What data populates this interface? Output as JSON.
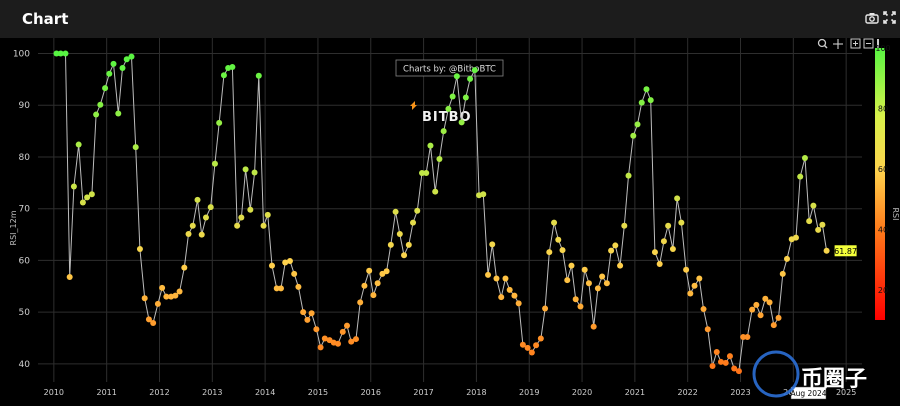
{
  "header": {
    "title": "Chart"
  },
  "icons": {
    "camera": "camera-icon",
    "fullscreen": "fullscreen-icon",
    "zoom": "zoom-icon",
    "pan": "pan-icon",
    "zoom_in": "zoom-in-icon",
    "zoom_out": "zoom-out-icon",
    "autoscale": "autoscale-icon"
  },
  "watermark": {
    "credit": "Charts by: @BitboBTC",
    "logo": "BITBO"
  },
  "corner_logo": "币圈子",
  "chart_data": {
    "type": "scatter",
    "mode": "lines+markers",
    "ylabel": "RSI_12m",
    "xlabel": "",
    "x_ticks": [
      "2010",
      "2011",
      "2012",
      "2013",
      "2014",
      "2015",
      "2016",
      "2017",
      "2018",
      "2019",
      "2020",
      "2021",
      "2022",
      "2023",
      "2024",
      "2025"
    ],
    "y_ticks": [
      40,
      50,
      60,
      70,
      80,
      90,
      100
    ],
    "xlim": [
      2009.7,
      2025.3
    ],
    "ylim": [
      36.5,
      103
    ],
    "grid": true,
    "colorbar": {
      "title": "RSI",
      "ticks": [
        20,
        40,
        60,
        80,
        100
      ],
      "range": [
        10,
        100
      ]
    },
    "last_value_label": "61.87",
    "hover_x_label": "Aug 2024",
    "series": [
      {
        "points": [
          [
            2010.05,
            100
          ],
          [
            2010.13,
            100
          ],
          [
            2010.22,
            100
          ],
          [
            2010.3,
            56.8
          ],
          [
            2010.38,
            74.3
          ],
          [
            2010.47,
            82.4
          ],
          [
            2010.55,
            71.2
          ],
          [
            2010.63,
            72.2
          ],
          [
            2010.72,
            72.8
          ],
          [
            2010.8,
            88.2
          ],
          [
            2010.88,
            90.1
          ],
          [
            2010.97,
            93.3
          ],
          [
            2011.05,
            96.1
          ],
          [
            2011.13,
            98
          ],
          [
            2011.22,
            88.4
          ],
          [
            2011.3,
            97.2
          ],
          [
            2011.38,
            98.9
          ],
          [
            2011.47,
            99.4
          ],
          [
            2011.55,
            81.9
          ],
          [
            2011.63,
            62.2
          ],
          [
            2011.72,
            52.7
          ],
          [
            2011.8,
            48.6
          ],
          [
            2011.88,
            47.9
          ],
          [
            2011.97,
            51.6
          ],
          [
            2012.05,
            54.7
          ],
          [
            2012.13,
            53
          ],
          [
            2012.22,
            53
          ],
          [
            2012.3,
            53.2
          ],
          [
            2012.38,
            54
          ],
          [
            2012.47,
            58.6
          ],
          [
            2012.55,
            65.1
          ],
          [
            2012.63,
            66.7
          ],
          [
            2012.72,
            71.7
          ],
          [
            2012.8,
            65
          ],
          [
            2012.88,
            68.3
          ],
          [
            2012.97,
            70.3
          ],
          [
            2013.05,
            78.7
          ],
          [
            2013.13,
            86.6
          ],
          [
            2013.22,
            95.8
          ],
          [
            2013.3,
            97.2
          ],
          [
            2013.38,
            97.4
          ],
          [
            2013.47,
            66.7
          ],
          [
            2013.55,
            68.3
          ],
          [
            2013.63,
            77.6
          ],
          [
            2013.72,
            69.8
          ],
          [
            2013.8,
            77
          ],
          [
            2013.88,
            95.7
          ],
          [
            2013.97,
            66.7
          ],
          [
            2014.05,
            68.8
          ],
          [
            2014.13,
            59
          ],
          [
            2014.22,
            54.6
          ],
          [
            2014.3,
            54.6
          ],
          [
            2014.38,
            59.6
          ],
          [
            2014.47,
            59.9
          ],
          [
            2014.55,
            57.4
          ],
          [
            2014.63,
            54.9
          ],
          [
            2014.72,
            50
          ],
          [
            2014.8,
            48.5
          ],
          [
            2014.88,
            49.8
          ],
          [
            2014.97,
            46.7
          ],
          [
            2015.05,
            43.2
          ],
          [
            2015.13,
            44.9
          ],
          [
            2015.22,
            44.6
          ],
          [
            2015.3,
            44.1
          ],
          [
            2015.38,
            43.9
          ],
          [
            2015.47,
            46.2
          ],
          [
            2015.55,
            47.4
          ],
          [
            2015.63,
            44.3
          ],
          [
            2015.72,
            44.8
          ],
          [
            2015.8,
            51.9
          ],
          [
            2015.88,
            55.1
          ],
          [
            2015.97,
            58
          ],
          [
            2016.05,
            53.3
          ],
          [
            2016.13,
            55.6
          ],
          [
            2016.22,
            57.4
          ],
          [
            2016.3,
            57.9
          ],
          [
            2016.38,
            63
          ],
          [
            2016.47,
            69.4
          ],
          [
            2016.55,
            65.1
          ],
          [
            2016.63,
            61
          ],
          [
            2016.72,
            63
          ],
          [
            2016.8,
            67.3
          ],
          [
            2016.88,
            69.6
          ],
          [
            2016.97,
            76.9
          ],
          [
            2017.05,
            76.9
          ],
          [
            2017.13,
            82.2
          ],
          [
            2017.22,
            73.3
          ],
          [
            2017.3,
            79.6
          ],
          [
            2017.38,
            85
          ],
          [
            2017.47,
            89.3
          ],
          [
            2017.55,
            91.7
          ],
          [
            2017.63,
            95.6
          ],
          [
            2017.72,
            86.7
          ],
          [
            2017.8,
            91.5
          ],
          [
            2017.88,
            95.1
          ],
          [
            2017.97,
            96.8
          ],
          [
            2018.05,
            72.6
          ],
          [
            2018.13,
            72.8
          ],
          [
            2018.22,
            57.2
          ],
          [
            2018.3,
            63.1
          ],
          [
            2018.38,
            56.5
          ],
          [
            2018.47,
            52.9
          ],
          [
            2018.55,
            56.5
          ],
          [
            2018.63,
            54.3
          ],
          [
            2018.72,
            53.2
          ],
          [
            2018.8,
            51.7
          ],
          [
            2018.88,
            43.7
          ],
          [
            2018.97,
            43.1
          ],
          [
            2019.05,
            42.2
          ],
          [
            2019.13,
            43.6
          ],
          [
            2019.22,
            44.9
          ],
          [
            2019.3,
            50.7
          ],
          [
            2019.38,
            61.6
          ],
          [
            2019.47,
            67.3
          ],
          [
            2019.55,
            64
          ],
          [
            2019.63,
            62
          ],
          [
            2019.72,
            56.2
          ],
          [
            2019.8,
            59
          ],
          [
            2019.88,
            52.5
          ],
          [
            2019.97,
            51.1
          ],
          [
            2020.05,
            58.2
          ],
          [
            2020.13,
            55.6
          ],
          [
            2020.22,
            47.2
          ],
          [
            2020.3,
            54.6
          ],
          [
            2020.38,
            56.9
          ],
          [
            2020.47,
            55.6
          ],
          [
            2020.55,
            61.9
          ],
          [
            2020.63,
            62.9
          ],
          [
            2020.72,
            59
          ],
          [
            2020.8,
            66.7
          ],
          [
            2020.88,
            76.4
          ],
          [
            2020.97,
            84.1
          ],
          [
            2021.05,
            86.3
          ],
          [
            2021.13,
            90.5
          ],
          [
            2021.22,
            93.1
          ],
          [
            2021.3,
            91
          ],
          [
            2021.38,
            61.6
          ],
          [
            2021.47,
            59.3
          ],
          [
            2021.55,
            63.7
          ],
          [
            2021.63,
            66.7
          ],
          [
            2021.72,
            62.2
          ],
          [
            2021.8,
            72
          ],
          [
            2021.88,
            67.3
          ],
          [
            2021.97,
            58.2
          ],
          [
            2022.05,
            53.6
          ],
          [
            2022.13,
            55.1
          ],
          [
            2022.22,
            56.5
          ],
          [
            2022.3,
            50.6
          ],
          [
            2022.38,
            46.7
          ],
          [
            2022.47,
            39.6
          ],
          [
            2022.55,
            42.3
          ],
          [
            2022.63,
            40.4
          ],
          [
            2022.72,
            40.2
          ],
          [
            2022.8,
            41.5
          ],
          [
            2022.88,
            39.1
          ],
          [
            2022.97,
            38.6
          ],
          [
            2023.05,
            45.2
          ],
          [
            2023.13,
            45.2
          ],
          [
            2023.22,
            50.5
          ],
          [
            2023.3,
            51.4
          ],
          [
            2023.38,
            49.4
          ],
          [
            2023.47,
            52.6
          ],
          [
            2023.55,
            51.9
          ],
          [
            2023.63,
            47.5
          ],
          [
            2023.72,
            48.9
          ],
          [
            2023.8,
            57.4
          ],
          [
            2023.88,
            60.3
          ],
          [
            2023.97,
            64.1
          ],
          [
            2024.05,
            64.4
          ],
          [
            2024.13,
            76.2
          ],
          [
            2024.22,
            79.8
          ],
          [
            2024.3,
            67.6
          ],
          [
            2024.38,
            70.6
          ],
          [
            2024.47,
            65.9
          ],
          [
            2024.55,
            66.9
          ],
          [
            2024.63,
            61.87
          ]
        ]
      }
    ]
  }
}
